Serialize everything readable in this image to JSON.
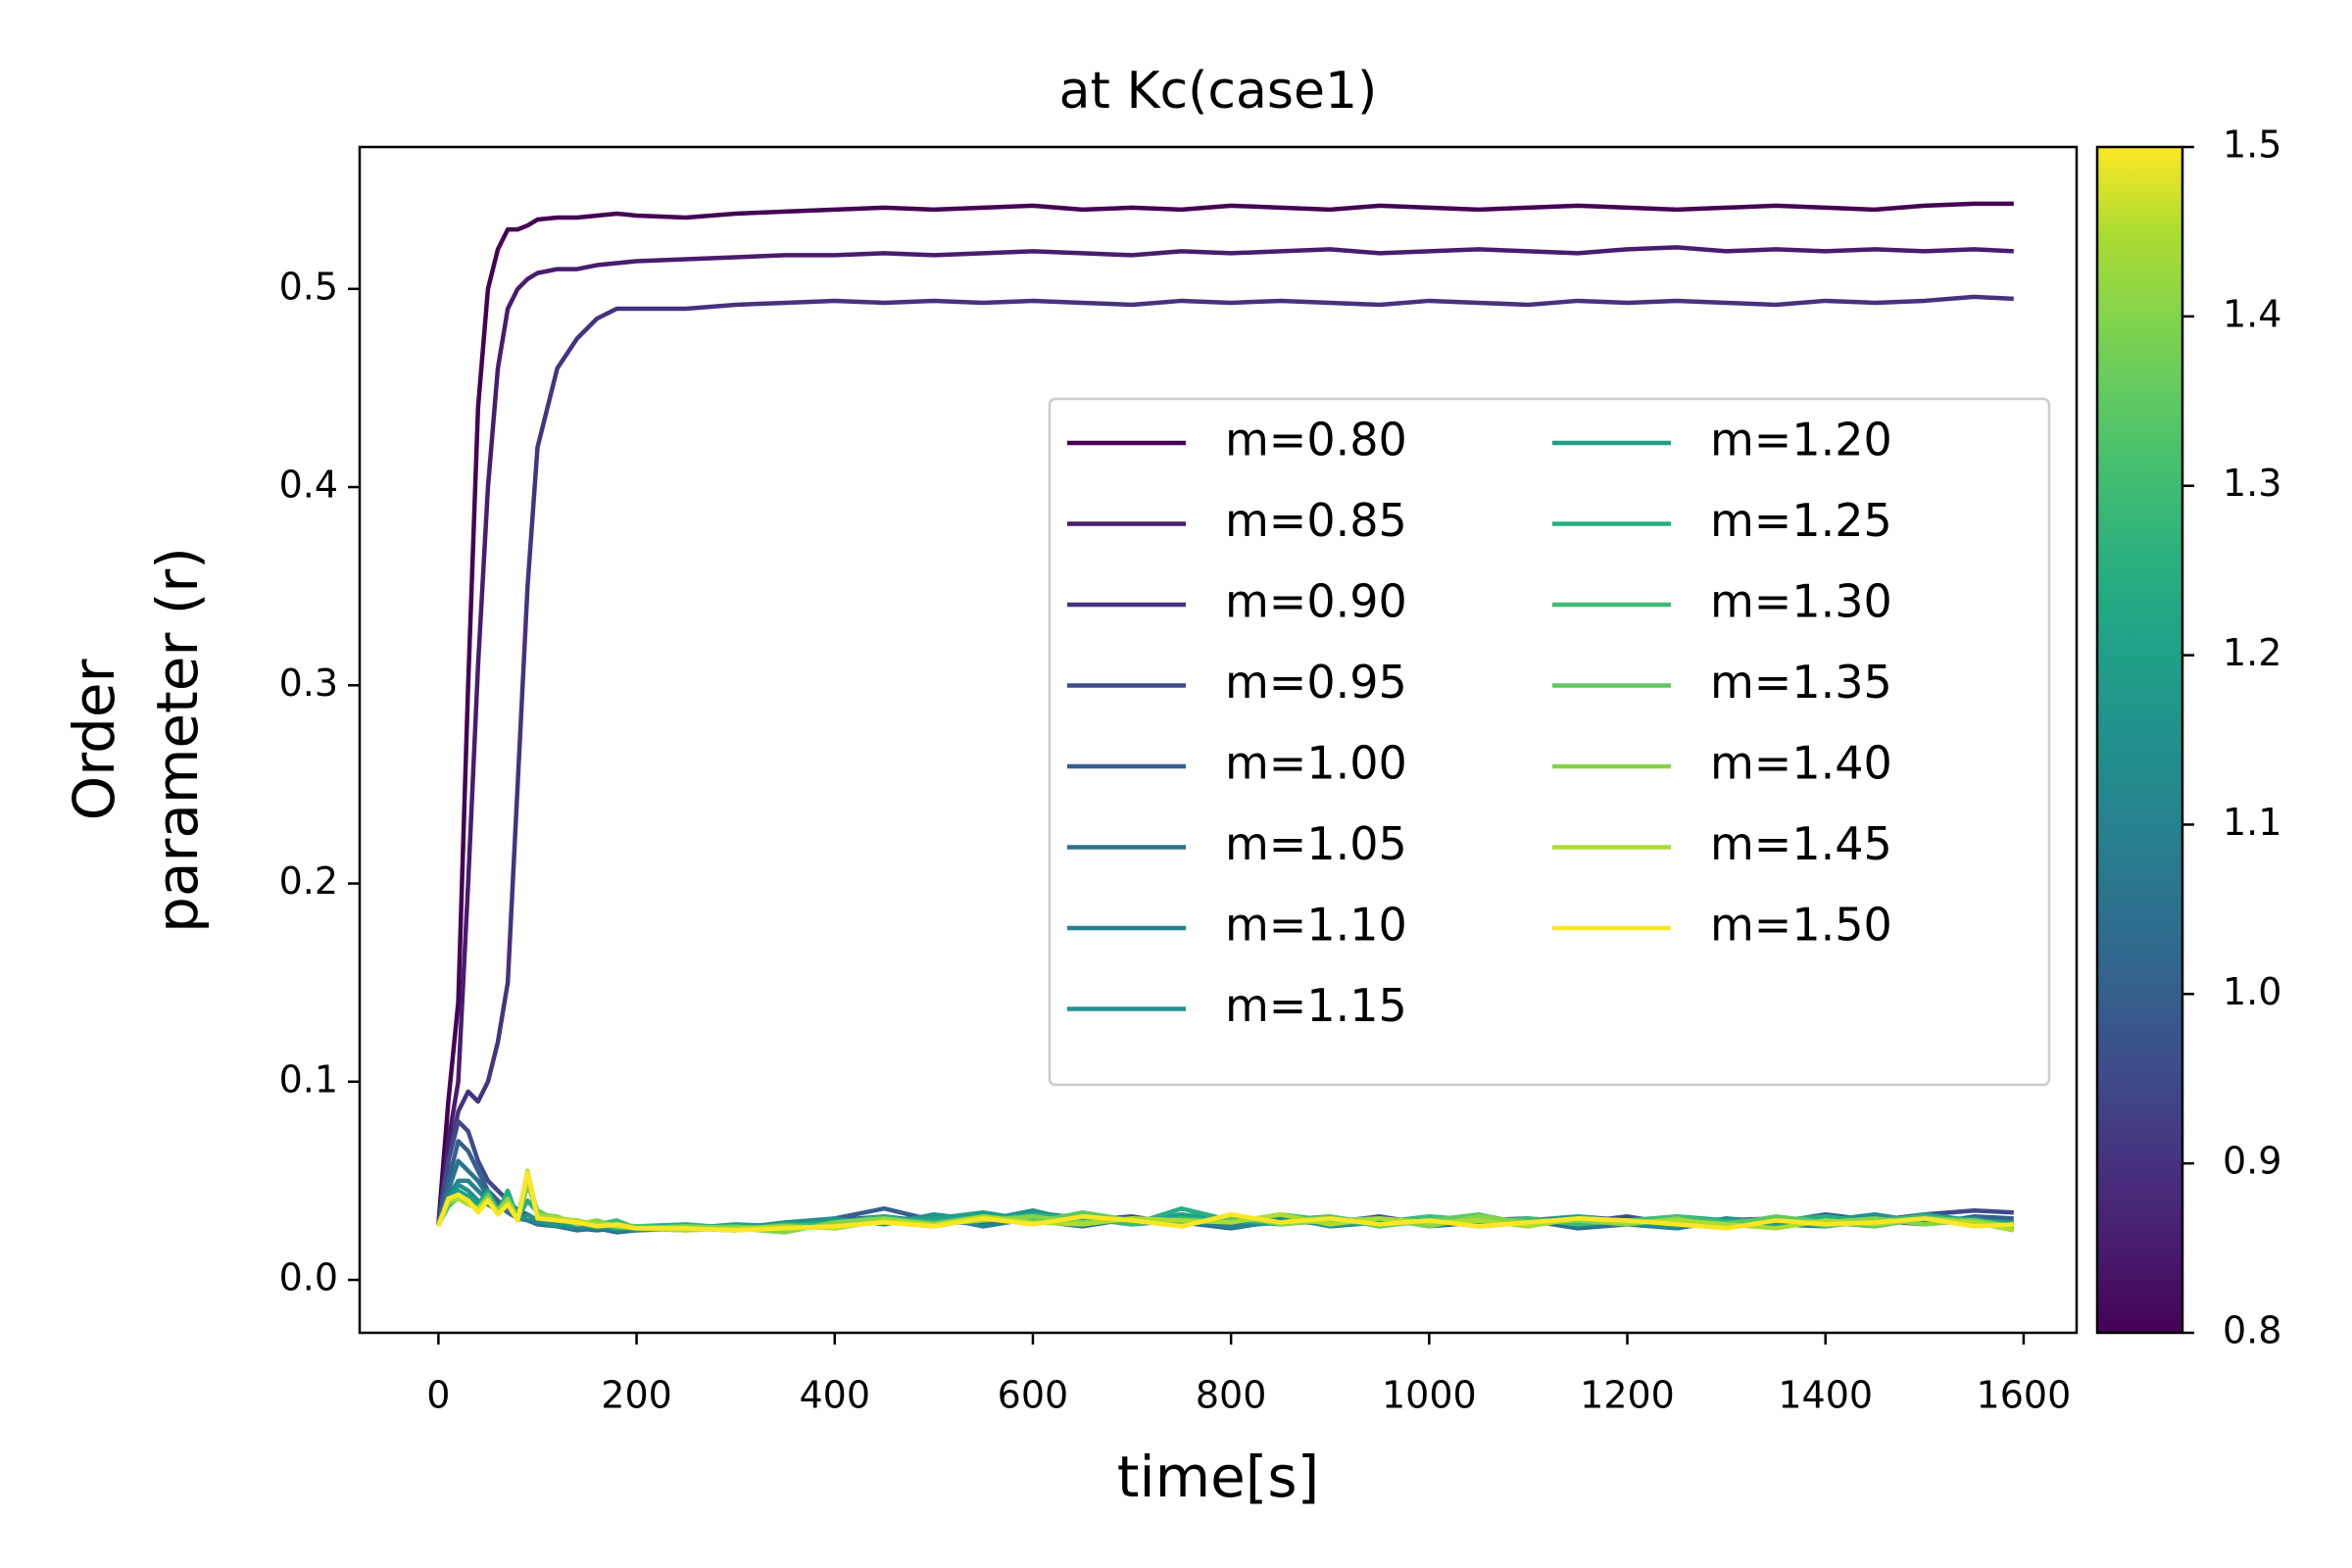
{
  "chart_data": {
    "type": "line",
    "title": "at Kc(case1)",
    "xlabel": "time[s]",
    "ylabel": [
      "Order",
      "parameter (r)"
    ],
    "x": [
      0,
      10,
      20,
      30,
      40,
      50,
      60,
      70,
      80,
      90,
      100,
      120,
      140,
      160,
      180,
      200,
      250,
      300,
      350,
      400,
      450,
      500,
      550,
      600,
      650,
      700,
      750,
      800,
      850,
      900,
      950,
      1000,
      1050,
      1100,
      1150,
      1200,
      1250,
      1300,
      1350,
      1400,
      1450,
      1500,
      1550,
      1590
    ],
    "xlim": [
      -79.5,
      1653.5
    ],
    "xticks": [
      0,
      200,
      400,
      600,
      800,
      1000,
      1200,
      1400,
      1600
    ],
    "ylim": [
      -0.0267,
      0.5716
    ],
    "yticks": [
      {
        "value": 0,
        "label": "0.0"
      },
      0.1,
      0.2,
      0.3,
      0.4,
      0.5
    ],
    "grid": false,
    "legend": {
      "loc": "center right",
      "ncol": 2
    },
    "colorbar": {
      "clim": [
        0.8,
        1.5
      ],
      "ticks": [
        0.8,
        0.9,
        {
          "value": 1,
          "label": "1.0"
        },
        1.1,
        1.2,
        1.3,
        1.4,
        1.5
      ]
    },
    "series": [
      {
        "name": "m=0.80",
        "color": "#440154",
        "values": [
          0.028,
          0.09,
          0.14,
          0.3,
          0.44,
          0.5,
          0.52,
          0.53,
          0.53,
          0.532,
          0.535,
          0.536,
          0.536,
          0.537,
          0.538,
          0.537,
          0.536,
          0.538,
          0.539,
          0.54,
          0.541,
          0.54,
          0.541,
          0.542,
          0.54,
          0.541,
          0.54,
          0.542,
          0.541,
          0.54,
          0.542,
          0.541,
          0.54,
          0.541,
          0.542,
          0.541,
          0.54,
          0.541,
          0.542,
          0.541,
          0.54,
          0.542,
          0.543,
          0.543
        ]
      },
      {
        "name": "m=0.85",
        "color": "#481c6e",
        "values": [
          0.028,
          0.07,
          0.1,
          0.2,
          0.31,
          0.4,
          0.46,
          0.49,
          0.5,
          0.505,
          0.508,
          0.51,
          0.51,
          0.512,
          0.513,
          0.514,
          0.515,
          0.516,
          0.517,
          0.517,
          0.518,
          0.517,
          0.518,
          0.519,
          0.518,
          0.517,
          0.519,
          0.518,
          0.519,
          0.52,
          0.518,
          0.519,
          0.52,
          0.519,
          0.518,
          0.52,
          0.521,
          0.519,
          0.52,
          0.519,
          0.52,
          0.519,
          0.52,
          0.519
        ]
      },
      {
        "name": "m=0.90",
        "color": "#46327e",
        "values": [
          0.028,
          0.06,
          0.085,
          0.095,
          0.09,
          0.1,
          0.12,
          0.15,
          0.25,
          0.35,
          0.42,
          0.46,
          0.475,
          0.485,
          0.49,
          0.49,
          0.49,
          0.492,
          0.493,
          0.494,
          0.493,
          0.494,
          0.493,
          0.494,
          0.493,
          0.492,
          0.494,
          0.493,
          0.494,
          0.493,
          0.492,
          0.494,
          0.493,
          0.492,
          0.494,
          0.493,
          0.494,
          0.493,
          0.492,
          0.494,
          0.493,
          0.494,
          0.496,
          0.495
        ]
      },
      {
        "name": "m=0.95",
        "color": "#3e4a89",
        "values": [
          0.028,
          0.06,
          0.08,
          0.075,
          0.06,
          0.05,
          0.045,
          0.04,
          0.035,
          0.033,
          0.03,
          0.028,
          0.027,
          0.026,
          0.026,
          0.027,
          0.026,
          0.025,
          0.027,
          0.03,
          0.032,
          0.029,
          0.031,
          0.033,
          0.03,
          0.032,
          0.028,
          0.031,
          0.03,
          0.029,
          0.032,
          0.028,
          0.03,
          0.031,
          0.029,
          0.032,
          0.028,
          0.03,
          0.031,
          0.029,
          0.03,
          0.033,
          0.035,
          0.034
        ]
      },
      {
        "name": "m=1.00",
        "color": "#355f8d",
        "values": [
          0.028,
          0.05,
          0.07,
          0.065,
          0.055,
          0.045,
          0.04,
          0.035,
          0.033,
          0.03,
          0.029,
          0.027,
          0.026,
          0.025,
          0.026,
          0.025,
          0.027,
          0.026,
          0.028,
          0.031,
          0.036,
          0.03,
          0.028,
          0.034,
          0.031,
          0.029,
          0.033,
          0.028,
          0.03,
          0.032,
          0.027,
          0.031,
          0.029,
          0.028,
          0.032,
          0.03,
          0.027,
          0.031,
          0.029,
          0.033,
          0.03,
          0.028,
          0.032,
          0.031
        ]
      },
      {
        "name": "m=1.05",
        "color": "#2c728e",
        "values": [
          0.028,
          0.045,
          0.06,
          0.055,
          0.05,
          0.042,
          0.038,
          0.034,
          0.031,
          0.03,
          0.028,
          0.027,
          0.025,
          0.026,
          0.024,
          0.025,
          0.026,
          0.027,
          0.025,
          0.029,
          0.031,
          0.028,
          0.033,
          0.03,
          0.027,
          0.031,
          0.029,
          0.026,
          0.03,
          0.028,
          0.031,
          0.027,
          0.029,
          0.03,
          0.026,
          0.028,
          0.031,
          0.029,
          0.027,
          0.03,
          0.028,
          0.031,
          0.029,
          0.027
        ]
      },
      {
        "name": "m=1.10",
        "color": "#26828e",
        "values": [
          0.028,
          0.042,
          0.05,
          0.05,
          0.045,
          0.04,
          0.036,
          0.04,
          0.032,
          0.03,
          0.029,
          0.028,
          0.026,
          0.027,
          0.025,
          0.026,
          0.025,
          0.027,
          0.028,
          0.026,
          0.03,
          0.032,
          0.027,
          0.031,
          0.033,
          0.028,
          0.03,
          0.027,
          0.029,
          0.031,
          0.028,
          0.03,
          0.027,
          0.029,
          0.031,
          0.028,
          0.026,
          0.03,
          0.028,
          0.027,
          0.031,
          0.029,
          0.03,
          0.028
        ]
      },
      {
        "name": "m=1.15",
        "color": "#21918c",
        "values": [
          0.028,
          0.04,
          0.048,
          0.045,
          0.04,
          0.038,
          0.035,
          0.042,
          0.03,
          0.033,
          0.03,
          0.027,
          0.028,
          0.026,
          0.027,
          0.025,
          0.027,
          0.026,
          0.029,
          0.031,
          0.028,
          0.033,
          0.03,
          0.035,
          0.029,
          0.031,
          0.028,
          0.03,
          0.032,
          0.027,
          0.029,
          0.031,
          0.028,
          0.03,
          0.032,
          0.029,
          0.027,
          0.031,
          0.028,
          0.03,
          0.033,
          0.029,
          0.031,
          0.027
        ]
      },
      {
        "name": "m=1.20",
        "color": "#1fa088",
        "values": [
          0.028,
          0.04,
          0.045,
          0.042,
          0.038,
          0.045,
          0.035,
          0.04,
          0.033,
          0.05,
          0.032,
          0.03,
          0.029,
          0.027,
          0.026,
          0.027,
          0.026,
          0.028,
          0.027,
          0.03,
          0.029,
          0.031,
          0.034,
          0.03,
          0.032,
          0.029,
          0.033,
          0.03,
          0.028,
          0.031,
          0.029,
          0.032,
          0.03,
          0.028,
          0.031,
          0.029,
          0.032,
          0.03,
          0.028,
          0.031,
          0.029,
          0.033,
          0.03,
          0.029
        ]
      },
      {
        "name": "m=1.25",
        "color": "#28ae80",
        "values": [
          0.028,
          0.038,
          0.043,
          0.04,
          0.036,
          0.042,
          0.034,
          0.045,
          0.031,
          0.04,
          0.034,
          0.03,
          0.028,
          0.029,
          0.026,
          0.027,
          0.028,
          0.026,
          0.027,
          0.029,
          0.032,
          0.028,
          0.03,
          0.033,
          0.031,
          0.028,
          0.036,
          0.03,
          0.029,
          0.032,
          0.028,
          0.031,
          0.03,
          0.027,
          0.032,
          0.029,
          0.031,
          0.028,
          0.03,
          0.032,
          0.029,
          0.031,
          0.03,
          0.026
        ]
      },
      {
        "name": "m=1.30",
        "color": "#3fbc73",
        "values": [
          0.028,
          0.037,
          0.042,
          0.04,
          0.035,
          0.04,
          0.036,
          0.038,
          0.032,
          0.052,
          0.033,
          0.031,
          0.029,
          0.028,
          0.03,
          0.026,
          0.027,
          0.025,
          0.028,
          0.027,
          0.031,
          0.029,
          0.032,
          0.03,
          0.033,
          0.028,
          0.031,
          0.029,
          0.033,
          0.03,
          0.028,
          0.032,
          0.029,
          0.031,
          0.028,
          0.03,
          0.032,
          0.029,
          0.031,
          0.027,
          0.03,
          0.032,
          0.029,
          0.025
        ]
      },
      {
        "name": "m=1.35",
        "color": "#5ec962",
        "values": [
          0.028,
          0.038,
          0.041,
          0.039,
          0.036,
          0.043,
          0.034,
          0.04,
          0.03,
          0.048,
          0.035,
          0.03,
          0.03,
          0.027,
          0.028,
          0.027,
          0.026,
          0.027,
          0.025,
          0.028,
          0.03,
          0.027,
          0.031,
          0.029,
          0.034,
          0.03,
          0.028,
          0.031,
          0.029,
          0.032,
          0.027,
          0.03,
          0.033,
          0.028,
          0.031,
          0.029,
          0.03,
          0.028,
          0.032,
          0.029,
          0.027,
          0.031,
          0.03,
          0.026
        ]
      },
      {
        "name": "m=1.40",
        "color": "#84d44b",
        "values": [
          0.028,
          0.039,
          0.042,
          0.04,
          0.035,
          0.04,
          0.035,
          0.041,
          0.031,
          0.05,
          0.033,
          0.032,
          0.028,
          0.03,
          0.027,
          0.026,
          0.027,
          0.026,
          0.024,
          0.029,
          0.031,
          0.028,
          0.03,
          0.032,
          0.029,
          0.031,
          0.027,
          0.033,
          0.028,
          0.03,
          0.031,
          0.027,
          0.032,
          0.029,
          0.03,
          0.028,
          0.031,
          0.026,
          0.03,
          0.029,
          0.031,
          0.028,
          0.03,
          0.027
        ]
      },
      {
        "name": "m=1.45",
        "color": "#addc30",
        "values": [
          0.028,
          0.04,
          0.041,
          0.038,
          0.036,
          0.041,
          0.033,
          0.039,
          0.03,
          0.055,
          0.032,
          0.031,
          0.03,
          0.028,
          0.027,
          0.026,
          0.025,
          0.026,
          0.027,
          0.026,
          0.03,
          0.028,
          0.032,
          0.029,
          0.028,
          0.031,
          0.03,
          0.029,
          0.033,
          0.028,
          0.031,
          0.029,
          0.03,
          0.027,
          0.031,
          0.029,
          0.03,
          0.028,
          0.026,
          0.03,
          0.028,
          0.031,
          0.029,
          0.025
        ]
      },
      {
        "name": "m=1.50",
        "color": "#fde725",
        "values": [
          0.027,
          0.041,
          0.043,
          0.04,
          0.034,
          0.04,
          0.033,
          0.038,
          0.03,
          0.054,
          0.031,
          0.03,
          0.029,
          0.027,
          0.028,
          0.026,
          0.026,
          0.025,
          0.026,
          0.027,
          0.029,
          0.027,
          0.031,
          0.028,
          0.032,
          0.03,
          0.027,
          0.033,
          0.029,
          0.031,
          0.028,
          0.03,
          0.027,
          0.029,
          0.031,
          0.03,
          0.028,
          0.026,
          0.03,
          0.028,
          0.029,
          0.031,
          0.027,
          0.028
        ]
      }
    ]
  }
}
